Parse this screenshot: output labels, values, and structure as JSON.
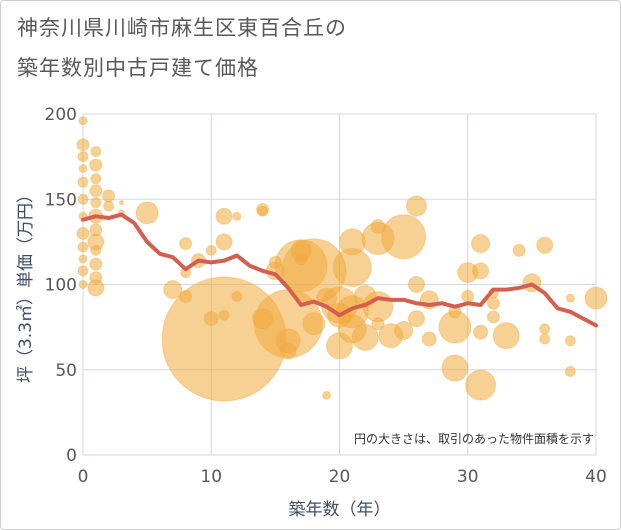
{
  "chart_data": {
    "type": "scatter",
    "title_line1": "神奈川県川崎市麻生区東百合丘の",
    "title_line2": "築年数別中古戸建て価格",
    "xlabel": "築年数（年）",
    "ylabel": "坪（3.3㎡）単価（万円）",
    "annotation": "円の大きさは、取引のあった物件面積を示す",
    "xlim": [
      0,
      40
    ],
    "ylim": [
      0,
      200
    ],
    "xticks": [
      0,
      10,
      20,
      30,
      40
    ],
    "yticks": [
      0,
      50,
      100,
      150,
      200
    ],
    "grid": true,
    "colors": {
      "bubble": "#f0a93c",
      "trend": "#d35f4f"
    },
    "trend": {
      "x": [
        0,
        1,
        2,
        3,
        4,
        5,
        6,
        7,
        8,
        9,
        10,
        11,
        12,
        13,
        14,
        15,
        16,
        17,
        18,
        19,
        20,
        21,
        22,
        23,
        24,
        25,
        26,
        27,
        28,
        29,
        30,
        31,
        32,
        33,
        34,
        35,
        36,
        37,
        38,
        39,
        40
      ],
      "y": [
        138,
        140,
        139,
        141,
        136,
        125,
        118,
        116,
        109,
        114,
        113,
        114,
        117,
        111,
        108,
        106,
        98,
        88,
        90,
        87,
        82,
        86,
        88,
        92,
        91,
        91,
        89,
        88,
        89,
        87,
        89,
        88,
        97,
        97,
        98,
        100,
        95,
        86,
        84,
        80,
        76
      ]
    },
    "bubbles": [
      {
        "x": 0,
        "y": 196,
        "s": 4
      },
      {
        "x": 0,
        "y": 182,
        "s": 6
      },
      {
        "x": 0,
        "y": 175,
        "s": 5
      },
      {
        "x": 0,
        "y": 168,
        "s": 4
      },
      {
        "x": 0,
        "y": 160,
        "s": 5
      },
      {
        "x": 0,
        "y": 150,
        "s": 5
      },
      {
        "x": 0,
        "y": 140,
        "s": 4
      },
      {
        "x": 0,
        "y": 130,
        "s": 6
      },
      {
        "x": 0,
        "y": 122,
        "s": 5
      },
      {
        "x": 0,
        "y": 115,
        "s": 4
      },
      {
        "x": 0,
        "y": 108,
        "s": 5
      },
      {
        "x": 0,
        "y": 100,
        "s": 4
      },
      {
        "x": 1,
        "y": 178,
        "s": 5
      },
      {
        "x": 1,
        "y": 170,
        "s": 6
      },
      {
        "x": 1,
        "y": 162,
        "s": 5
      },
      {
        "x": 1,
        "y": 155,
        "s": 6
      },
      {
        "x": 1,
        "y": 148,
        "s": 5
      },
      {
        "x": 1,
        "y": 140,
        "s": 7
      },
      {
        "x": 1,
        "y": 132,
        "s": 6
      },
      {
        "x": 1,
        "y": 125,
        "s": 8
      },
      {
        "x": 1,
        "y": 120,
        "s": 5
      },
      {
        "x": 1,
        "y": 112,
        "s": 6
      },
      {
        "x": 1,
        "y": 104,
        "s": 6
      },
      {
        "x": 1,
        "y": 98,
        "s": 8
      },
      {
        "x": 2,
        "y": 152,
        "s": 6
      },
      {
        "x": 2,
        "y": 146,
        "s": 5
      },
      {
        "x": 3,
        "y": 142,
        "s": 3
      },
      {
        "x": 3,
        "y": 148,
        "s": 2
      },
      {
        "x": 5,
        "y": 142,
        "s": 11
      },
      {
        "x": 7,
        "y": 97,
        "s": 9
      },
      {
        "x": 8,
        "y": 124,
        "s": 6
      },
      {
        "x": 8,
        "y": 107,
        "s": 5
      },
      {
        "x": 8,
        "y": 93,
        "s": 6
      },
      {
        "x": 9,
        "y": 114,
        "s": 7
      },
      {
        "x": 10,
        "y": 120,
        "s": 5
      },
      {
        "x": 10,
        "y": 80,
        "s": 7
      },
      {
        "x": 11,
        "y": 140,
        "s": 8
      },
      {
        "x": 11,
        "y": 125,
        "s": 8
      },
      {
        "x": 11,
        "y": 82,
        "s": 5
      },
      {
        "x": 11,
        "y": 68,
        "s": 62
      },
      {
        "x": 12,
        "y": 140,
        "s": 4
      },
      {
        "x": 12,
        "y": 93,
        "s": 5
      },
      {
        "x": 14,
        "y": 144,
        "s": 6
      },
      {
        "x": 14,
        "y": 143,
        "s": 5
      },
      {
        "x": 14,
        "y": 80,
        "s": 10
      },
      {
        "x": 15,
        "y": 113,
        "s": 6
      },
      {
        "x": 15,
        "y": 108,
        "s": 9
      },
      {
        "x": 16,
        "y": 77,
        "s": 34
      },
      {
        "x": 16,
        "y": 67,
        "s": 12
      },
      {
        "x": 16,
        "y": 61,
        "s": 8
      },
      {
        "x": 17,
        "y": 120,
        "s": 10
      },
      {
        "x": 17,
        "y": 111,
        "s": 26
      },
      {
        "x": 17,
        "y": 115,
        "s": 6
      },
      {
        "x": 18,
        "y": 108,
        "s": 32
      },
      {
        "x": 18,
        "y": 77,
        "s": 11
      },
      {
        "x": 19,
        "y": 35,
        "s": 4
      },
      {
        "x": 19,
        "y": 92,
        "s": 10
      },
      {
        "x": 20,
        "y": 88,
        "s": 18
      },
      {
        "x": 20,
        "y": 82,
        "s": 12
      },
      {
        "x": 20,
        "y": 64,
        "s": 13
      },
      {
        "x": 21,
        "y": 125,
        "s": 13
      },
      {
        "x": 21,
        "y": 110,
        "s": 19
      },
      {
        "x": 21,
        "y": 84,
        "s": 16
      },
      {
        "x": 21,
        "y": 74,
        "s": 14
      },
      {
        "x": 22,
        "y": 93,
        "s": 11
      },
      {
        "x": 22,
        "y": 69,
        "s": 13
      },
      {
        "x": 23,
        "y": 134,
        "s": 7
      },
      {
        "x": 23,
        "y": 127,
        "s": 16
      },
      {
        "x": 23,
        "y": 87,
        "s": 15
      },
      {
        "x": 23,
        "y": 77,
        "s": 6
      },
      {
        "x": 24,
        "y": 70,
        "s": 12
      },
      {
        "x": 25,
        "y": 128,
        "s": 22
      },
      {
        "x": 25,
        "y": 73,
        "s": 9
      },
      {
        "x": 26,
        "y": 146,
        "s": 10
      },
      {
        "x": 26,
        "y": 100,
        "s": 8
      },
      {
        "x": 26,
        "y": 80,
        "s": 8
      },
      {
        "x": 27,
        "y": 91,
        "s": 9
      },
      {
        "x": 27,
        "y": 68,
        "s": 7
      },
      {
        "x": 29,
        "y": 84,
        "s": 6
      },
      {
        "x": 29,
        "y": 75,
        "s": 16
      },
      {
        "x": 29,
        "y": 51,
        "s": 13
      },
      {
        "x": 30,
        "y": 107,
        "s": 10
      },
      {
        "x": 30,
        "y": 93,
        "s": 6
      },
      {
        "x": 31,
        "y": 124,
        "s": 9
      },
      {
        "x": 31,
        "y": 108,
        "s": 8
      },
      {
        "x": 31,
        "y": 72,
        "s": 7
      },
      {
        "x": 31,
        "y": 41,
        "s": 15
      },
      {
        "x": 32,
        "y": 89,
        "s": 6
      },
      {
        "x": 32,
        "y": 81,
        "s": 6
      },
      {
        "x": 32,
        "y": 95,
        "s": 5
      },
      {
        "x": 33,
        "y": 70,
        "s": 13
      },
      {
        "x": 34,
        "y": 120,
        "s": 6
      },
      {
        "x": 35,
        "y": 101,
        "s": 9
      },
      {
        "x": 36,
        "y": 123,
        "s": 8
      },
      {
        "x": 36,
        "y": 74,
        "s": 5
      },
      {
        "x": 36,
        "y": 68,
        "s": 5
      },
      {
        "x": 38,
        "y": 92,
        "s": 4
      },
      {
        "x": 38,
        "y": 67,
        "s": 5
      },
      {
        "x": 38,
        "y": 49,
        "s": 5
      },
      {
        "x": 40,
        "y": 92,
        "s": 11
      }
    ]
  }
}
